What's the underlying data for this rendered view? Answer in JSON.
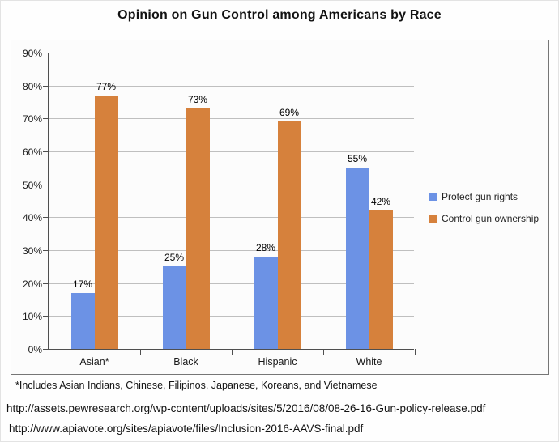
{
  "title": "Opinion on Gun Control among Americans by Race",
  "chart_data": {
    "type": "bar",
    "categories": [
      "Asian*",
      "Black",
      "Hispanic",
      "White"
    ],
    "series": [
      {
        "name": "Protect gun rights",
        "color": "#6C92E5",
        "values": [
          17,
          25,
          28,
          55
        ]
      },
      {
        "name": "Control gun ownership",
        "color": "#D6813C",
        "values": [
          77,
          73,
          69,
          42
        ]
      }
    ],
    "value_suffix": "%",
    "ylim": [
      0,
      90
    ],
    "y_tick_step": 10,
    "y_tick_labels": [
      "0%",
      "10%",
      "20%",
      "30%",
      "40%",
      "50%",
      "60%",
      "70%",
      "80%",
      "90%"
    ],
    "grid": true,
    "data_labels": true,
    "legend_position": "right"
  },
  "footnote": "*Includes Asian Indians, Chinese, Filipinos, Japanese, Koreans, and Vietnamese",
  "sources": [
    "http://assets.pewresearch.org/wp-content/uploads/sites/5/2016/08/08-26-16-Gun-policy-release.pdf",
    "http://www.apiavote.org/sites/apiavote/files/Inclusion-2016-AAVS-final.pdf"
  ],
  "colors": {
    "gridline": "#BFBFBF",
    "axis": "#4F4F4F",
    "chart_border": "#767676"
  }
}
